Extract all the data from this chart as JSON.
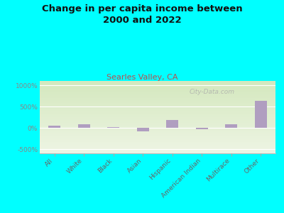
{
  "title": "Change in per capita income between\n2000 and 2022",
  "subtitle": "Searles Valley, CA",
  "categories": [
    "All",
    "White",
    "Black",
    "Asian",
    "Hispanic",
    "American Indian",
    "Multirace",
    "Other"
  ],
  "values": [
    50,
    80,
    25,
    -80,
    190,
    -25,
    90,
    630
  ],
  "bar_color": "#b09ec0",
  "background_color": "#00FFFF",
  "plot_bg_top": "#d4e8be",
  "plot_bg_bottom": "#eef5e4",
  "title_fontsize": 9.5,
  "subtitle_fontsize": 8,
  "subtitle_color": "#b85050",
  "ytick_color": "#888888",
  "xtick_color": "#666666",
  "ylim": [
    -600,
    1100
  ],
  "yticks": [
    -500,
    0,
    500,
    1000
  ],
  "watermark": "City-Data.com"
}
